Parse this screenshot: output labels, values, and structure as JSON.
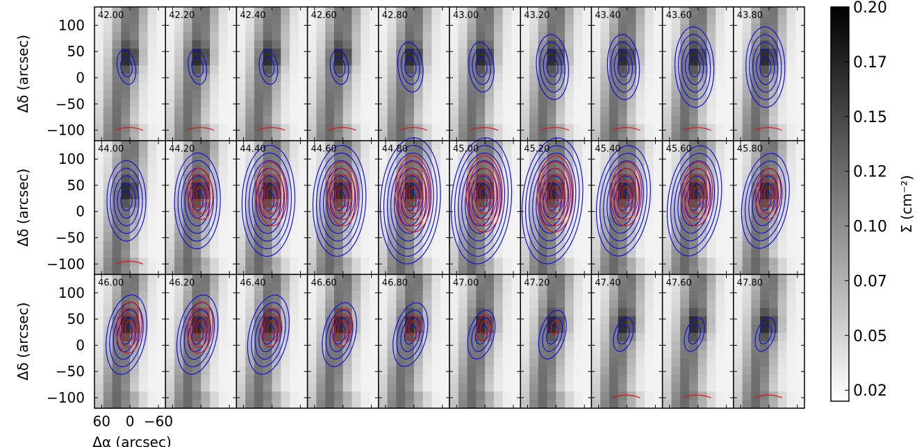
{
  "chart_data": {
    "type": "heatmap",
    "layout": {
      "rows": 3,
      "cols": 10
    },
    "panel_labels": [
      "42.00",
      "42.20",
      "42.40",
      "42.60",
      "42.80",
      "43.00",
      "43.20",
      "43.40",
      "43.60",
      "43.80",
      "44.00",
      "44.20",
      "44.40",
      "44.60",
      "44.80",
      "45.00",
      "45.20",
      "45.40",
      "45.60",
      "45.80",
      "46.00",
      "46.20",
      "46.40",
      "46.60",
      "46.80",
      "47.00",
      "47.20",
      "47.40",
      "47.60",
      "47.80"
    ],
    "ylabel": "Δδ (arcsec)",
    "xlabel": "Δα (arcsec)",
    "yticks": [
      "100",
      "50",
      "0",
      "−50",
      "−100"
    ],
    "ytick_values": [
      100,
      50,
      0,
      -50,
      -100
    ],
    "ylim": [
      -120,
      135
    ],
    "xticks": [
      "60",
      "0",
      "−60"
    ],
    "xtick_values": [
      60,
      0,
      -60
    ],
    "xlim": [
      75,
      -75
    ],
    "colorbar": {
      "label": "Σ (cm⁻²)",
      "ticks": [
        "0.20",
        "0.17",
        "0.15",
        "0.12",
        "0.10",
        "0.07",
        "0.05",
        "0.02"
      ],
      "tick_values": [
        0.2,
        0.175,
        0.15,
        0.125,
        0.1,
        0.075,
        0.05,
        0.025
      ],
      "range": [
        0.02,
        0.2
      ]
    },
    "colors": {
      "contour_1": "#1010e0",
      "contour_2": "#e01010",
      "frame": "#000000"
    }
  }
}
